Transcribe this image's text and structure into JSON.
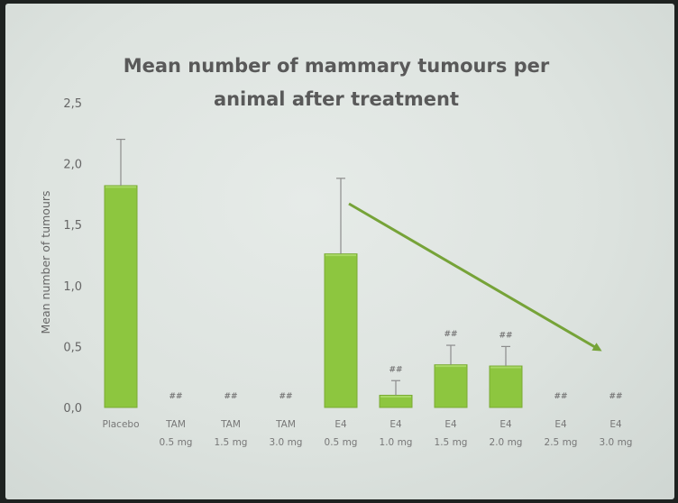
{
  "chart_data": {
    "type": "bar",
    "title_lines": [
      "Mean number of mammary tumours per",
      "animal after treatment"
    ],
    "ylabel": "Mean number of tumours",
    "xlabel": "",
    "ylim": [
      0,
      2.5
    ],
    "yticks": [
      "0,0",
      "0,5",
      "1,0",
      "1,5",
      "2,0",
      "2,5"
    ],
    "categories": [
      [
        "Placebo"
      ],
      [
        "TAM",
        "0.5 mg"
      ],
      [
        "TAM",
        "1.5 mg"
      ],
      [
        "TAM",
        "3.0 mg"
      ],
      [
        "E4",
        "0.5 mg"
      ],
      [
        "E4",
        "1.0 mg"
      ],
      [
        "E4",
        "1.5 mg"
      ],
      [
        "E4",
        "2.0 mg"
      ],
      [
        "E4",
        "2.5 mg"
      ],
      [
        "E4",
        "3.0 mg"
      ]
    ],
    "values": [
      1.82,
      0,
      0,
      0,
      1.26,
      0.1,
      0.35,
      0.34,
      0,
      0
    ],
    "error_upper": [
      2.2,
      null,
      null,
      null,
      1.88,
      0.22,
      0.51,
      0.5,
      null,
      null
    ],
    "annotations": [
      "",
      "##",
      "##",
      "##",
      "",
      "##",
      "##",
      "##",
      "##",
      "##"
    ],
    "bar_color": "#8dc63f",
    "bar_edge_color": "#7aab34",
    "arrow_color": "#76a338",
    "grid": false,
    "legend": "none"
  }
}
